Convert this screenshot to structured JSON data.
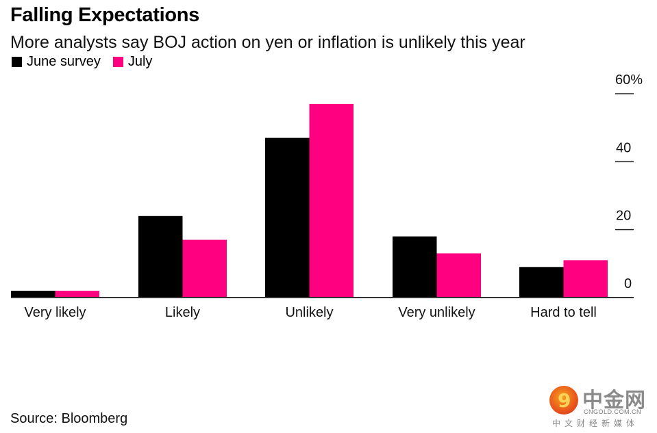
{
  "chart_data": {
    "type": "bar",
    "title": "Falling Expectations",
    "subtitle": "More analysts say BOJ action on yen or inflation is unlikely this year",
    "categories": [
      "Very likely",
      "Likely",
      "Unlikely",
      "Very unlikely",
      "Hard to tell"
    ],
    "series": [
      {
        "name": "June survey",
        "color": "#000000",
        "values": [
          2,
          24,
          47,
          18,
          9
        ]
      },
      {
        "name": "July",
        "color": "#ff0080",
        "values": [
          2,
          17,
          57,
          13,
          11
        ]
      }
    ],
    "xlabel": "",
    "ylabel": "",
    "ylim": [
      0,
      60
    ],
    "yticks": [
      {
        "value": 0,
        "label": "0"
      },
      {
        "value": 20,
        "label": "20"
      },
      {
        "value": 40,
        "label": "40"
      },
      {
        "value": 60,
        "label": "60%"
      }
    ],
    "y_axis_position": "right",
    "grid": false,
    "legend_position": "top-left"
  },
  "source": "Source: Bloomberg",
  "watermark": {
    "name_cn": "中金网",
    "domain": "CNGOLD.COM.CN",
    "tagline": "中文财经新媒体",
    "logo_glyph": "9"
  }
}
